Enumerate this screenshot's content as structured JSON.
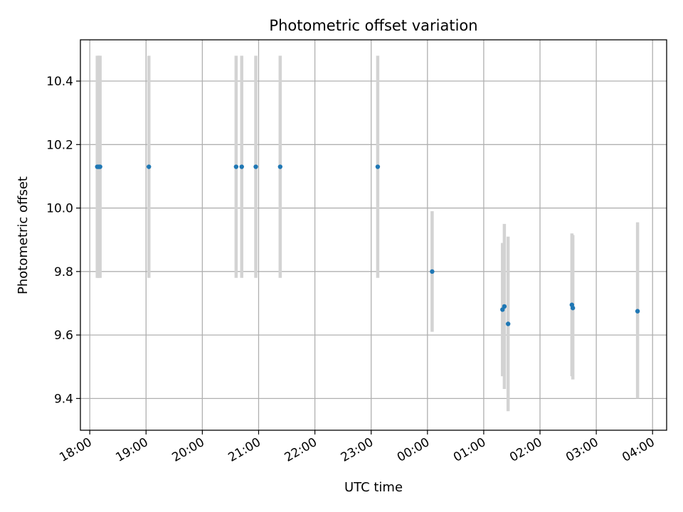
{
  "chart_data": {
    "type": "scatter",
    "title": "Photometric offset variation",
    "xlabel": "UTC time",
    "ylabel": "Photometric offset",
    "x_unit": "UTC time (HH:MM, overnight)",
    "xlim": [
      "17:50",
      "04:15"
    ],
    "ylim": [
      9.3,
      10.53
    ],
    "x_ticks": [
      "18:00",
      "19:00",
      "20:00",
      "21:00",
      "22:00",
      "23:00",
      "00:00",
      "01:00",
      "02:00",
      "03:00",
      "04:00"
    ],
    "y_ticks": [
      "9.4",
      "9.6",
      "9.8",
      "10.0",
      "10.2",
      "10.4"
    ],
    "grid": true,
    "colors": {
      "point": "#1f77b4",
      "error_bar": "#d3d3d3",
      "grid": "#b0b0b0"
    },
    "points": [
      {
        "x": "18:08",
        "y": 10.13,
        "y_low": 9.78,
        "y_high": 10.48
      },
      {
        "x": "18:09",
        "y": 10.13,
        "y_low": 9.78,
        "y_high": 10.48
      },
      {
        "x": "18:10",
        "y": 10.13,
        "y_low": 9.78,
        "y_high": 10.48
      },
      {
        "x": "18:11",
        "y": 10.13,
        "y_low": 9.78,
        "y_high": 10.48
      },
      {
        "x": "19:03",
        "y": 10.13,
        "y_low": 9.78,
        "y_high": 10.48
      },
      {
        "x": "20:36",
        "y": 10.13,
        "y_low": 9.78,
        "y_high": 10.48
      },
      {
        "x": "20:42",
        "y": 10.13,
        "y_low": 9.78,
        "y_high": 10.48
      },
      {
        "x": "20:57",
        "y": 10.13,
        "y_low": 9.78,
        "y_high": 10.48
      },
      {
        "x": "21:23",
        "y": 10.13,
        "y_low": 9.78,
        "y_high": 10.48
      },
      {
        "x": "23:07",
        "y": 10.13,
        "y_low": 9.78,
        "y_high": 10.48
      },
      {
        "x": "00:05",
        "y": 9.8,
        "y_low": 9.61,
        "y_high": 9.99
      },
      {
        "x": "01:20",
        "y": 9.68,
        "y_low": 9.47,
        "y_high": 9.89
      },
      {
        "x": "01:22",
        "y": 9.69,
        "y_low": 9.43,
        "y_high": 9.95
      },
      {
        "x": "01:26",
        "y": 9.635,
        "y_low": 9.36,
        "y_high": 9.91
      },
      {
        "x": "02:34",
        "y": 9.695,
        "y_low": 9.47,
        "y_high": 9.92
      },
      {
        "x": "02:35",
        "y": 9.685,
        "y_low": 9.46,
        "y_high": 9.915
      },
      {
        "x": "03:44",
        "y": 9.675,
        "y_low": 9.4,
        "y_high": 9.955
      }
    ]
  }
}
